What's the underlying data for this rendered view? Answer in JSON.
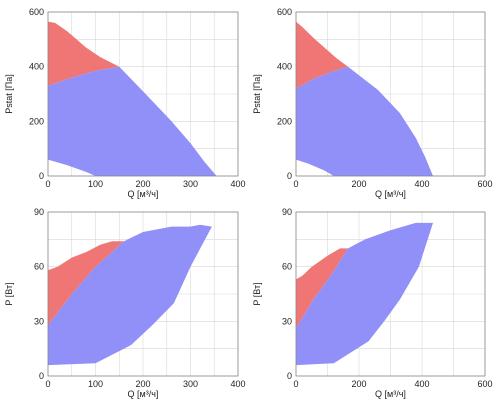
{
  "colors": {
    "red_region": "#ef6f6f",
    "blue_region": "#8a8af8",
    "grid": "#d8d8d8",
    "axis": "#888888",
    "background": "#ffffff"
  },
  "chart_data": [
    {
      "type": "area",
      "title": "",
      "xlabel": "Q [м³/ч]",
      "ylabel": "Pstat [Па]",
      "xlim": [
        0,
        400
      ],
      "ylim": [
        0,
        600
      ],
      "xticks": [
        "0",
        "100",
        "200",
        "300",
        "400"
      ],
      "yticks": [
        "0",
        "200",
        "400",
        "600"
      ],
      "grid": true,
      "series": [
        {
          "color": "#ef6f6f",
          "points": [
            [
              0,
              565
            ],
            [
              15,
              560
            ],
            [
              40,
              530
            ],
            [
              80,
              470
            ],
            [
              110,
              435
            ],
            [
              150,
              400
            ],
            [
              100,
              385
            ],
            [
              50,
              360
            ],
            [
              0,
              330
            ]
          ]
        },
        {
          "color": "#8a8af8",
          "points": [
            [
              0,
              330
            ],
            [
              50,
              360
            ],
            [
              100,
              385
            ],
            [
              150,
              400
            ],
            [
              200,
              310
            ],
            [
              260,
              200
            ],
            [
              300,
              120
            ],
            [
              330,
              50
            ],
            [
              355,
              0
            ],
            [
              100,
              0
            ],
            [
              80,
              15
            ],
            [
              40,
              40
            ],
            [
              0,
              60
            ]
          ]
        }
      ]
    },
    {
      "type": "area",
      "title": "",
      "xlabel": "Q [м³/ч]",
      "ylabel": "Pstat [Па]",
      "xlim": [
        0,
        600
      ],
      "ylim": [
        0,
        600
      ],
      "xticks": [
        "0",
        "200",
        "400",
        "600"
      ],
      "yticks": [
        "0",
        "200",
        "400",
        "600"
      ],
      "grid": true,
      "series": [
        {
          "color": "#ef6f6f",
          "points": [
            [
              0,
              565
            ],
            [
              20,
              545
            ],
            [
              60,
              500
            ],
            [
              100,
              460
            ],
            [
              130,
              430
            ],
            [
              165,
              400
            ],
            [
              110,
              380
            ],
            [
              55,
              355
            ],
            [
              0,
              320
            ]
          ]
        },
        {
          "color": "#8a8af8",
          "points": [
            [
              0,
              320
            ],
            [
              55,
              355
            ],
            [
              110,
              380
            ],
            [
              165,
              400
            ],
            [
              260,
              315
            ],
            [
              330,
              230
            ],
            [
              380,
              140
            ],
            [
              410,
              70
            ],
            [
              435,
              0
            ],
            [
              120,
              0
            ],
            [
              90,
              20
            ],
            [
              40,
              45
            ],
            [
              0,
              60
            ]
          ]
        }
      ]
    },
    {
      "type": "area",
      "title": "",
      "xlabel": "Q [м³/ч]",
      "ylabel": "P [Вт]",
      "xlim": [
        0,
        400
      ],
      "ylim": [
        0,
        90
      ],
      "xticks": [
        "0",
        "100",
        "200",
        "300",
        "400"
      ],
      "yticks": [
        "0",
        "30",
        "60",
        "90"
      ],
      "grid": true,
      "series": [
        {
          "color": "#ef6f6f",
          "points": [
            [
              0,
              58
            ],
            [
              20,
              60
            ],
            [
              50,
              65
            ],
            [
              80,
              68
            ],
            [
              110,
              72
            ],
            [
              135,
              74
            ],
            [
              160,
              74
            ],
            [
              100,
              60
            ],
            [
              50,
              45
            ],
            [
              0,
              28
            ]
          ]
        },
        {
          "color": "#8a8af8",
          "points": [
            [
              0,
              28
            ],
            [
              50,
              45
            ],
            [
              100,
              60
            ],
            [
              160,
              74
            ],
            [
              200,
              79
            ],
            [
              260,
              82
            ],
            [
              300,
              82
            ],
            [
              320,
              83
            ],
            [
              345,
              82
            ],
            [
              300,
              60
            ],
            [
              265,
              40
            ],
            [
              220,
              28
            ],
            [
              175,
              17
            ],
            [
              100,
              7
            ],
            [
              0,
              6
            ]
          ]
        }
      ]
    },
    {
      "type": "area",
      "title": "",
      "xlabel": "Q [м³/ч]",
      "ylabel": "P [Вт]",
      "xlim": [
        0,
        600
      ],
      "ylim": [
        0,
        90
      ],
      "xticks": [
        "0",
        "200",
        "400",
        "600"
      ],
      "yticks": [
        "0",
        "30",
        "60",
        "90"
      ],
      "grid": true,
      "series": [
        {
          "color": "#ef6f6f",
          "points": [
            [
              0,
              53
            ],
            [
              20,
              55
            ],
            [
              50,
              60
            ],
            [
              100,
              66
            ],
            [
              140,
              70
            ],
            [
              165,
              70
            ],
            [
              110,
              55
            ],
            [
              55,
              42
            ],
            [
              0,
              26
            ]
          ]
        },
        {
          "color": "#8a8af8",
          "points": [
            [
              0,
              26
            ],
            [
              55,
              42
            ],
            [
              110,
              55
            ],
            [
              165,
              70
            ],
            [
              220,
              75
            ],
            [
              300,
              80
            ],
            [
              380,
              84
            ],
            [
              435,
              84
            ],
            [
              390,
              60
            ],
            [
              330,
              42
            ],
            [
              280,
              30
            ],
            [
              230,
              19
            ],
            [
              120,
              7
            ],
            [
              0,
              6
            ]
          ]
        }
      ]
    }
  ]
}
